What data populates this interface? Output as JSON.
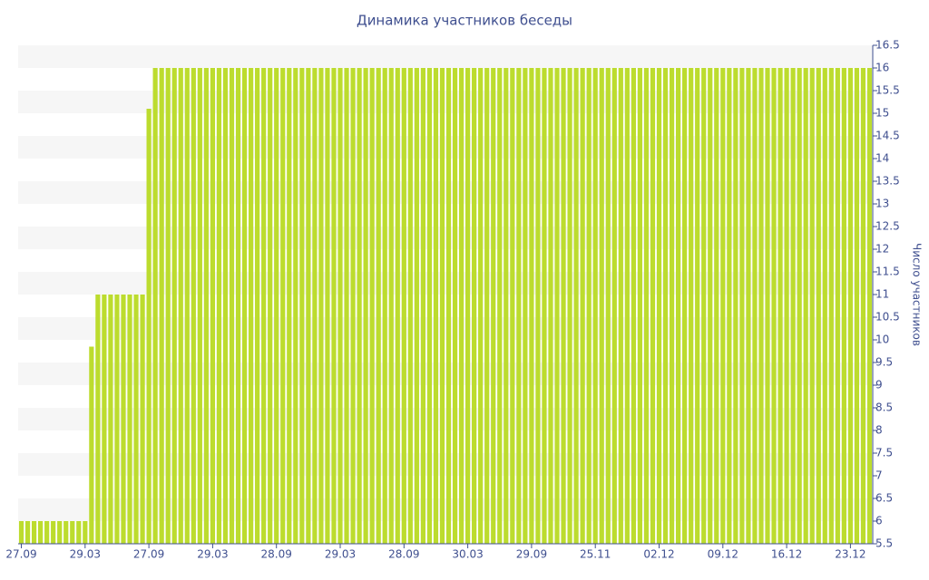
{
  "chart_data": {
    "type": "bar",
    "title": "Динамика участников беседы",
    "y_label": "Число участников",
    "color": "#bcdc2e",
    "grid": "bands",
    "y_axis_side": "right",
    "categories": [
      "27.09",
      null,
      null,
      null,
      null,
      null,
      null,
      null,
      null,
      null,
      "29.03",
      null,
      null,
      null,
      null,
      null,
      null,
      null,
      null,
      null,
      "27.09",
      null,
      null,
      null,
      null,
      null,
      null,
      null,
      null,
      null,
      "29.03",
      null,
      null,
      null,
      null,
      null,
      null,
      null,
      null,
      null,
      "28.09",
      null,
      null,
      null,
      null,
      null,
      null,
      null,
      null,
      null,
      "29.03",
      null,
      null,
      null,
      null,
      null,
      null,
      null,
      null,
      null,
      "28.09",
      null,
      null,
      null,
      null,
      null,
      null,
      null,
      null,
      null,
      "30.03",
      null,
      null,
      null,
      null,
      null,
      null,
      null,
      null,
      null,
      "29.09",
      null,
      null,
      null,
      null,
      null,
      null,
      null,
      null,
      null,
      "25.11",
      null,
      null,
      null,
      null,
      null,
      null,
      null,
      null,
      null,
      "02.12",
      null,
      null,
      null,
      null,
      null,
      null,
      null,
      null,
      null,
      "09.12",
      null,
      null,
      null,
      null,
      null,
      null,
      null,
      null,
      null,
      "16.12",
      null,
      null,
      null,
      null,
      null,
      null,
      null,
      null,
      null,
      "23.12",
      null,
      null,
      null
    ],
    "values": [
      6,
      6,
      6,
      6,
      6,
      6,
      6,
      6,
      6,
      6,
      6,
      9.85,
      11,
      11,
      11,
      11,
      11,
      11,
      11,
      11,
      15.1,
      16,
      16,
      16,
      16,
      16,
      16,
      16,
      16,
      16,
      16,
      16,
      16,
      16,
      16,
      16,
      16,
      16,
      16,
      16,
      16,
      16,
      16,
      16,
      16,
      16,
      16,
      16,
      16,
      16,
      16,
      16,
      16,
      16,
      16,
      16,
      16,
      16,
      16,
      16,
      16,
      16,
      16,
      16,
      16,
      16,
      16,
      16,
      16,
      16,
      16,
      16,
      16,
      16,
      16,
      16,
      16,
      16,
      16,
      16,
      16,
      16,
      16,
      16,
      16,
      16,
      16,
      16,
      16,
      16,
      16,
      16,
      16,
      16,
      16,
      16,
      16,
      16,
      16,
      16,
      16,
      16,
      16,
      16,
      16,
      16,
      16,
      16,
      16,
      16,
      16,
      16,
      16,
      16,
      16,
      16,
      16,
      16,
      16,
      16,
      16,
      16,
      16,
      16,
      16,
      16,
      16,
      16,
      16,
      16,
      16,
      16,
      16,
      16
    ],
    "ylim": [
      5.5,
      16.5
    ],
    "yticks": [
      5.5,
      6,
      6.5,
      7,
      7.5,
      8,
      8.5,
      9,
      9.5,
      10,
      10.5,
      11,
      11.5,
      12,
      12.5,
      13,
      13.5,
      14,
      14.5,
      15,
      15.5,
      16,
      16.5
    ]
  }
}
